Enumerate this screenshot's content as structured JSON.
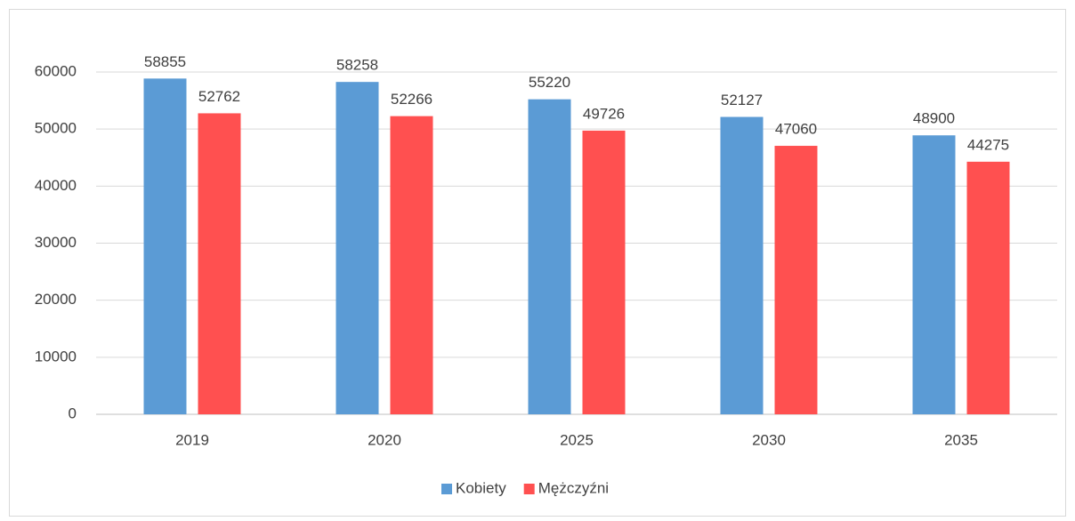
{
  "chart_data": {
    "type": "bar",
    "categories": [
      "2019",
      "2020",
      "2025",
      "2030",
      "2035"
    ],
    "series": [
      {
        "name": "Kobiety",
        "color": "#5b9bd5",
        "values": [
          58855,
          58258,
          55220,
          52127,
          48900
        ]
      },
      {
        "name": "Mężczyźni",
        "color": "#ff5050",
        "values": [
          52762,
          52266,
          49726,
          47060,
          44275
        ]
      }
    ],
    "ylim": [
      0,
      60000
    ],
    "yticks": [
      0,
      10000,
      20000,
      30000,
      40000,
      50000,
      60000
    ],
    "grid": true,
    "legend": "bottom"
  }
}
